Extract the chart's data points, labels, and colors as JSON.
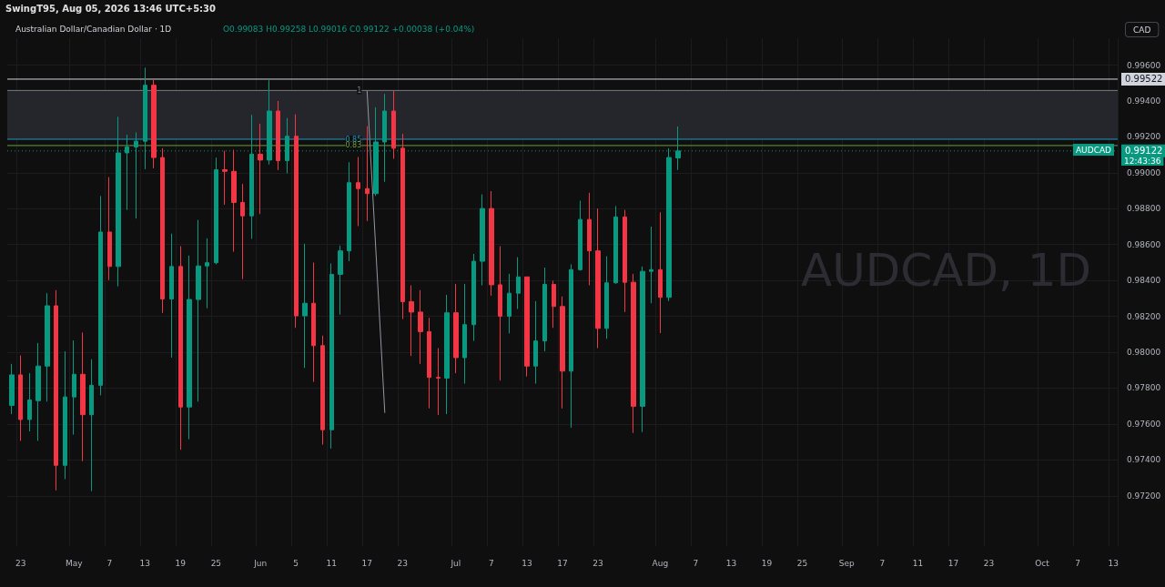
{
  "chart_data": {
    "type": "candlestick",
    "title": "Australian Dollar/Canadian Dollar · 1D",
    "subtitle": "O0.99083 H0.99258 L0.99016 C0.99122 +0.00038 (+0.04%)",
    "categories": [
      null,
      "23",
      null,
      null,
      null,
      null,
      null,
      "May",
      null,
      null,
      null,
      "7",
      null,
      null,
      null,
      "13",
      null,
      null,
      null,
      "19",
      null,
      null,
      null,
      "25",
      null,
      null,
      null,
      null,
      "Jun",
      null,
      null,
      null,
      "5",
      null,
      null,
      null,
      "11",
      null,
      null,
      null,
      "17",
      null,
      null,
      null,
      "23",
      null,
      null,
      null,
      null,
      null,
      "Jul",
      null,
      null,
      null,
      "7",
      null,
      null,
      null,
      "13",
      null,
      null,
      null,
      "17",
      null,
      null,
      null,
      "23",
      null,
      null,
      null,
      null,
      null,
      null,
      "Aug",
      null,
      null,
      null,
      "7",
      null,
      null,
      null,
      "13",
      null,
      null,
      null,
      "19",
      null,
      null,
      null,
      "25",
      null,
      null,
      null,
      null,
      "Sep",
      null,
      null,
      null,
      "7",
      null,
      null,
      null,
      "11",
      null,
      null,
      null,
      "17",
      null,
      null,
      null,
      "23",
      null,
      null,
      null,
      null,
      null,
      "Oct",
      null,
      null,
      null,
      "7",
      null,
      null,
      null,
      "13"
    ],
    "series": [
      {
        "ohlc": [
          [
            0.97704,
            0.97935,
            0.97655,
            0.97874
          ],
          [
            0.97874,
            0.97982,
            0.97506,
            0.97625
          ],
          [
            0.97625,
            0.97883,
            0.97559,
            0.97734
          ],
          [
            0.9773,
            0.98052,
            0.97506,
            0.97923
          ],
          [
            0.97923,
            0.98329,
            0.97725,
            0.98259
          ],
          [
            0.98259,
            0.98346,
            0.9723,
            0.9737
          ],
          [
            0.9737,
            0.98005,
            0.97293,
            0.97751
          ],
          [
            0.97751,
            0.98066,
            0.97541,
            0.97877
          ],
          [
            0.97877,
            0.9811,
            0.97393,
            0.97652
          ],
          [
            0.97652,
            0.97961,
            0.97226,
            0.97816
          ],
          [
            0.97816,
            0.98871,
            0.9776,
            0.9867
          ],
          [
            0.9867,
            0.98976,
            0.98402,
            0.98478
          ],
          [
            0.98478,
            0.99312,
            0.98367,
            0.99111
          ],
          [
            0.99111,
            0.99213,
            0.98793,
            0.99144
          ],
          [
            0.99144,
            0.99225,
            0.98745,
            0.99176
          ],
          [
            0.99176,
            0.99586,
            0.9902,
            0.99488
          ],
          [
            0.99488,
            0.99522,
            0.99025,
            0.99085
          ],
          [
            0.99085,
            0.99137,
            0.98219,
            0.98297
          ],
          [
            0.98297,
            0.98661,
            0.9797,
            0.98478
          ],
          [
            0.98478,
            0.98591,
            0.97457,
            0.97695
          ],
          [
            0.97695,
            0.98539,
            0.97515,
            0.98294
          ],
          [
            0.98294,
            0.98737,
            0.97725,
            0.98481
          ],
          [
            0.98481,
            0.98635,
            0.98245,
            0.98499
          ],
          [
            0.98499,
            0.99085,
            0.9849,
            0.99017
          ],
          [
            0.99017,
            0.99123,
            0.98822,
            0.99008
          ],
          [
            0.99008,
            0.99129,
            0.9856,
            0.98835
          ],
          [
            0.98835,
            0.98938,
            0.98408,
            0.9876
          ],
          [
            0.9876,
            0.99323,
            0.98632,
            0.99104
          ],
          [
            0.99104,
            0.99274,
            0.9877,
            0.99071
          ],
          [
            0.99071,
            0.99516,
            0.99046,
            0.99344
          ],
          [
            0.99344,
            0.994,
            0.99015,
            0.99068
          ],
          [
            0.99068,
            0.99305,
            0.98997,
            0.99204
          ],
          [
            0.99204,
            0.99326,
            0.98136,
            0.98203
          ],
          [
            0.98203,
            0.98605,
            0.97912,
            0.98273
          ],
          [
            0.98273,
            0.985,
            0.97835,
            0.98037
          ],
          [
            0.98037,
            0.98093,
            0.97485,
            0.97568
          ],
          [
            0.97568,
            0.98495,
            0.97463,
            0.98434
          ],
          [
            0.98434,
            0.98595,
            0.9821,
            0.98565
          ],
          [
            0.98565,
            0.99059,
            0.98507,
            0.98945
          ],
          [
            0.98945,
            0.99088,
            0.98703,
            0.98912
          ],
          [
            0.98912,
            0.9926,
            0.98731,
            0.98884
          ],
          [
            0.98884,
            0.99365,
            0.98871,
            0.99172
          ],
          [
            0.99172,
            0.9944,
            0.9895,
            0.99344
          ],
          [
            0.99344,
            0.99458,
            0.99078,
            0.99137
          ],
          [
            0.99137,
            0.99218,
            0.98185,
            0.98282
          ],
          [
            0.98282,
            0.98373,
            0.97979,
            0.98224
          ],
          [
            0.98224,
            0.98346,
            0.97935,
            0.98115
          ],
          [
            0.98115,
            0.98192,
            0.97687,
            0.9786
          ],
          [
            0.9786,
            0.98023,
            0.9765,
            0.97856
          ],
          [
            0.97856,
            0.9832,
            0.97655,
            0.9822
          ],
          [
            0.9822,
            0.98381,
            0.97883,
            0.9797
          ],
          [
            0.9797,
            0.98381,
            0.97825,
            0.98154
          ],
          [
            0.98154,
            0.98548,
            0.98063,
            0.98507
          ],
          [
            0.98507,
            0.9888,
            0.98373,
            0.98801
          ],
          [
            0.98801,
            0.98898,
            0.98315,
            0.98376
          ],
          [
            0.98376,
            0.98591,
            0.97842,
            0.98201
          ],
          [
            0.98201,
            0.98437,
            0.98105,
            0.98329
          ],
          [
            0.98329,
            0.9853,
            0.98241,
            0.9842
          ],
          [
            0.9842,
            0.9842,
            0.97865,
            0.97923
          ],
          [
            0.97923,
            0.98285,
            0.97825,
            0.98063
          ],
          [
            0.98063,
            0.98472,
            0.98005,
            0.98378
          ],
          [
            0.98378,
            0.98399,
            0.98136,
            0.98255
          ],
          [
            0.98255,
            0.98311,
            0.97687,
            0.97895
          ],
          [
            0.97895,
            0.9849,
            0.9758,
            0.9846
          ],
          [
            0.9846,
            0.98845,
            0.98455,
            0.9874
          ],
          [
            0.9874,
            0.98889,
            0.98373,
            0.98565
          ],
          [
            0.98565,
            0.98801,
            0.98023,
            0.98133
          ],
          [
            0.98133,
            0.98535,
            0.98075,
            0.98387
          ],
          [
            0.98387,
            0.98815,
            0.98382,
            0.98754
          ],
          [
            0.98754,
            0.98793,
            0.98224,
            0.9839
          ],
          [
            0.9839,
            0.98437,
            0.9755,
            0.97699
          ],
          [
            0.97699,
            0.98478,
            0.97555,
            0.98451
          ],
          [
            0.98451,
            0.987,
            0.98273,
            0.9846
          ],
          [
            0.9846,
            0.9878,
            0.98107,
            0.98306
          ],
          [
            0.98306,
            0.99137,
            0.98285,
            0.99085
          ],
          [
            0.99083,
            0.99258,
            0.99016,
            0.99122
          ],
          null,
          null,
          null,
          null,
          null,
          null,
          null,
          null,
          null,
          null,
          null,
          null,
          null,
          null,
          null,
          null,
          null,
          null,
          null,
          null,
          null,
          null,
          null,
          null,
          null,
          null,
          null,
          null,
          null,
          null,
          null,
          null,
          null,
          null,
          null,
          null,
          null,
          null,
          null,
          null,
          null,
          null,
          null,
          null,
          null,
          null,
          null,
          null,
          null
        ],
        "colors": [
          "#089981",
          "#f23645",
          "#089981",
          "#089981",
          "#089981",
          "#f23645",
          "#089981",
          "#089981",
          "#f23645",
          "#089981",
          "#089981",
          "#f23645",
          "#089981",
          "#089981",
          "#089981",
          "#089981",
          "#f23645",
          "#f23645",
          "#089981",
          "#f23645",
          "#089981",
          "#089981",
          "#089981",
          "#089981",
          "#f23645",
          "#f23645",
          "#f23645",
          "#089981",
          "#f23645",
          "#089981",
          "#f23645",
          "#089981",
          "#f23645",
          "#089981",
          "#f23645",
          "#f23645",
          "#089981",
          "#089981",
          "#089981",
          "#f23645",
          "#f23645",
          "#089981",
          "#089981",
          "#f23645",
          "#f23645",
          "#f23645",
          "#f23645",
          "#f23645",
          "#f23645",
          "#089981",
          "#f23645",
          "#089981",
          "#089981",
          "#089981",
          "#f23645",
          "#f23645",
          "#089981",
          "#089981",
          "#f23645",
          "#089981",
          "#089981",
          "#f23645",
          "#f23645",
          "#089981",
          "#089981",
          "#f23645",
          "#f23645",
          "#089981",
          "#089981",
          "#f23645",
          "#f23645",
          "#089981",
          "#089981",
          "#f23645",
          "#089981",
          "#089981",
          null,
          null,
          null,
          null,
          null,
          null,
          null,
          null,
          null,
          null,
          null,
          null,
          null,
          null,
          null,
          null,
          null,
          null,
          null,
          null,
          null,
          null,
          null,
          null,
          null,
          null,
          null,
          null,
          null,
          null,
          null,
          null,
          null,
          null,
          null,
          null,
          null,
          null,
          null,
          null,
          null,
          null,
          null,
          null,
          null,
          null,
          null,
          null,
          null
        ]
      },
      {
        "type": "line",
        "color": "#9598a1",
        "values": [
          null,
          null,
          null,
          null,
          null,
          null,
          null,
          null,
          null,
          null,
          null,
          null,
          null,
          null,
          null,
          null,
          null,
          null,
          null,
          null,
          null,
          null,
          null,
          null,
          null,
          null,
          null,
          null,
          null,
          null,
          null,
          null,
          null,
          null,
          null,
          null,
          null,
          null,
          null,
          null,
          0.99459,
          null,
          0.97662,
          null,
          null,
          null,
          null,
          null,
          null,
          null,
          null,
          null,
          null,
          null,
          null,
          null,
          null,
          null,
          null,
          null,
          null,
          null,
          null,
          null,
          null,
          null,
          null,
          null,
          null,
          null,
          null,
          null,
          null,
          null,
          null,
          null,
          null,
          null,
          null,
          null,
          null,
          null,
          null,
          null,
          null,
          null,
          null,
          null,
          null,
          null,
          null,
          null,
          null,
          null,
          null,
          null,
          null,
          null,
          null,
          null,
          null,
          null,
          null,
          null,
          null,
          null,
          null,
          null,
          null,
          null,
          null,
          null,
          null,
          null,
          null,
          null,
          null,
          null,
          null,
          null,
          null,
          null,
          null,
          null,
          null
        ]
      }
    ],
    "ylim": [
      0.9692,
      0.9975
    ],
    "yticks": [
      {
        "value": 0.972,
        "label": "0.97200"
      },
      {
        "value": 0.974,
        "label": "0.97400"
      },
      {
        "value": 0.976,
        "label": "0.97600"
      },
      {
        "value": 0.978,
        "label": "0.97800"
      },
      {
        "value": 0.98,
        "label": "0.98000"
      },
      {
        "value": 0.982,
        "label": "0.98200"
      },
      {
        "value": 0.984,
        "label": "0.98400"
      },
      {
        "value": 0.986,
        "label": "0.98600"
      },
      {
        "value": 0.988,
        "label": "0.98800"
      },
      {
        "value": 0.99,
        "label": "0.99000"
      },
      {
        "value": 0.992,
        "label": "0.99200"
      },
      {
        "value": 0.994,
        "label": "0.99400"
      },
      {
        "value": 0.996,
        "label": "0.99600"
      }
    ],
    "ref_lines": [
      {
        "axis": "y",
        "value": 0.99522,
        "label": "0.99522",
        "color": "#d1d4dc",
        "line_style": "solid"
      },
      {
        "axis": "y",
        "value": 0.99122,
        "label": "0.99122",
        "color": "#089981",
        "line_style": "dotted"
      },
      {
        "axis": "y",
        "value": 0.99459,
        "color": "#787b86",
        "line_style": "solid"
      },
      {
        "axis": "y",
        "value": 0.99187,
        "color": "#2196c3",
        "line_style": "solid"
      },
      {
        "axis": "y",
        "value": 0.99152,
        "color": "#6f9a3c",
        "line_style": "solid"
      }
    ],
    "bands": [
      {
        "axis": "y",
        "from": 0.99187,
        "to": 0.99459,
        "color": "#25262b"
      }
    ],
    "annotations": [
      "SwingT95, Aug 05, 2026 13:46 UTC+5:30",
      "CAD",
      "AUDCAD, 1D",
      "AUDCAD",
      "12:43:36",
      {
        "text": "1",
        "x": "17",
        "y": 0.99459
      },
      {
        "text": "0.85",
        "x": "17",
        "y": 0.99187
      },
      {
        "text": "0.83",
        "x": "17",
        "y": 0.99152
      }
    ],
    "grid": true
  }
}
